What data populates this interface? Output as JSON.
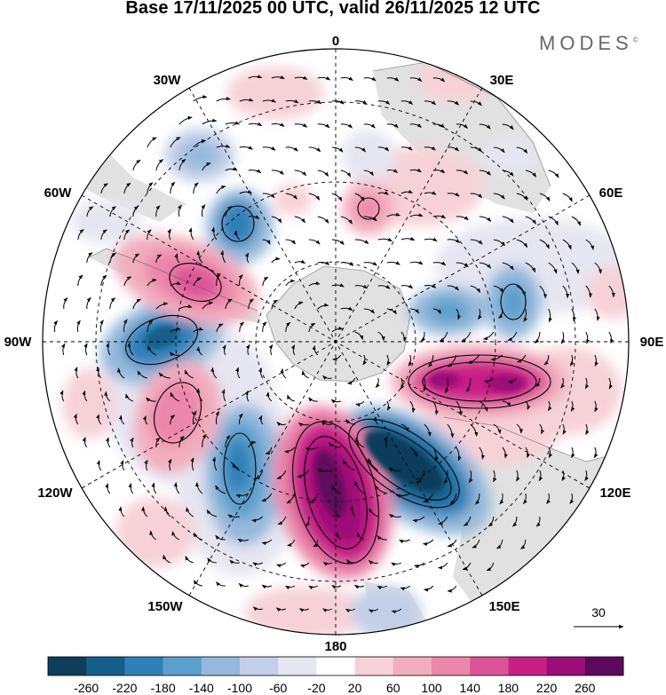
{
  "title": "Base 17/11/2025 00 UTC, valid 26/11/2025 12 UTC",
  "brand": "MODES",
  "brand_mark": "©",
  "map": {
    "projection": "south-polar-stereographic",
    "meridian_labels": {
      "m0": "0",
      "m30e": "30E",
      "m60e": "60E",
      "m90e": "90E",
      "m120e": "120E",
      "m150e": "150E",
      "m180": "180",
      "m150w": "150W",
      "m120w": "120W",
      "m90w": "90W",
      "m60w": "60W",
      "m30w": "30W"
    },
    "reference_vector": "30"
  },
  "colorbar": {
    "colors": [
      "#0f3e5c",
      "#145f8a",
      "#2f80b8",
      "#5b9fcc",
      "#95b9dc",
      "#c3cfe8",
      "#e6e6f2",
      "#ffffff",
      "#f6d2d8",
      "#f2aebf",
      "#ec86aa",
      "#dd5398",
      "#c81f87",
      "#9c0d77",
      "#5e0a5c"
    ],
    "labels": [
      "-260",
      "-220",
      "-180",
      "-140",
      "-100",
      "-60",
      "-20",
      "20",
      "60",
      "100",
      "140",
      "180",
      "220",
      "260"
    ]
  }
}
